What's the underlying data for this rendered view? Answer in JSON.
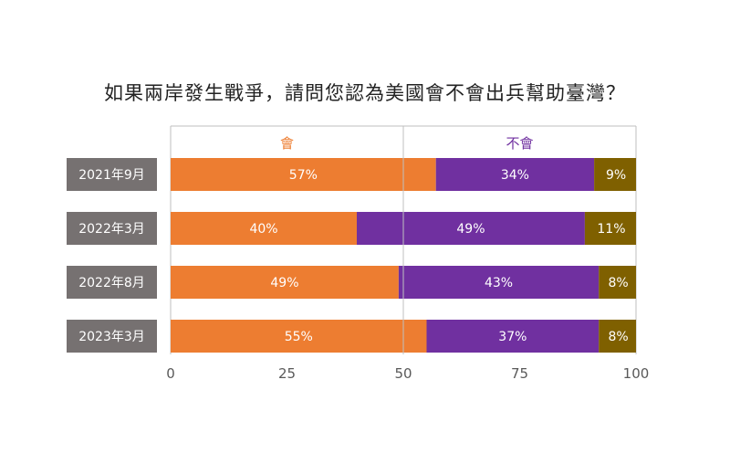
{
  "colors": {
    "hui": "#ED7D31",
    "buhui": "#7030A0",
    "other": "#7F6000",
    "rowLabelBg": "#767171",
    "rowLabelText": "#ffffff",
    "grid": "#BFBFBF",
    "tick": "#595959"
  },
  "chart_data": {
    "type": "bar",
    "orientation": "horizontal-stacked",
    "title": "如果兩岸發生戰爭，請問您認為美國會不會出兵幫助臺灣？",
    "categories": [
      "2021年9月",
      "2022年3月",
      "2022年8月",
      "2023年3月"
    ],
    "series": [
      {
        "name": "會",
        "values": [
          57,
          40,
          49,
          55
        ],
        "labels": [
          "57%",
          "40%",
          "49%",
          "55%"
        ]
      },
      {
        "name": "不會",
        "values": [
          34,
          49,
          43,
          37
        ],
        "labels": [
          "34%",
          "49%",
          "43%",
          "37%"
        ]
      },
      {
        "values": [
          9,
          11,
          8,
          8
        ],
        "labels": [
          "9%",
          "11%",
          "8%",
          "8%"
        ]
      }
    ],
    "xlim": [
      0,
      100
    ],
    "xticks": [
      0,
      25,
      50,
      75,
      100
    ],
    "legend": "top"
  }
}
